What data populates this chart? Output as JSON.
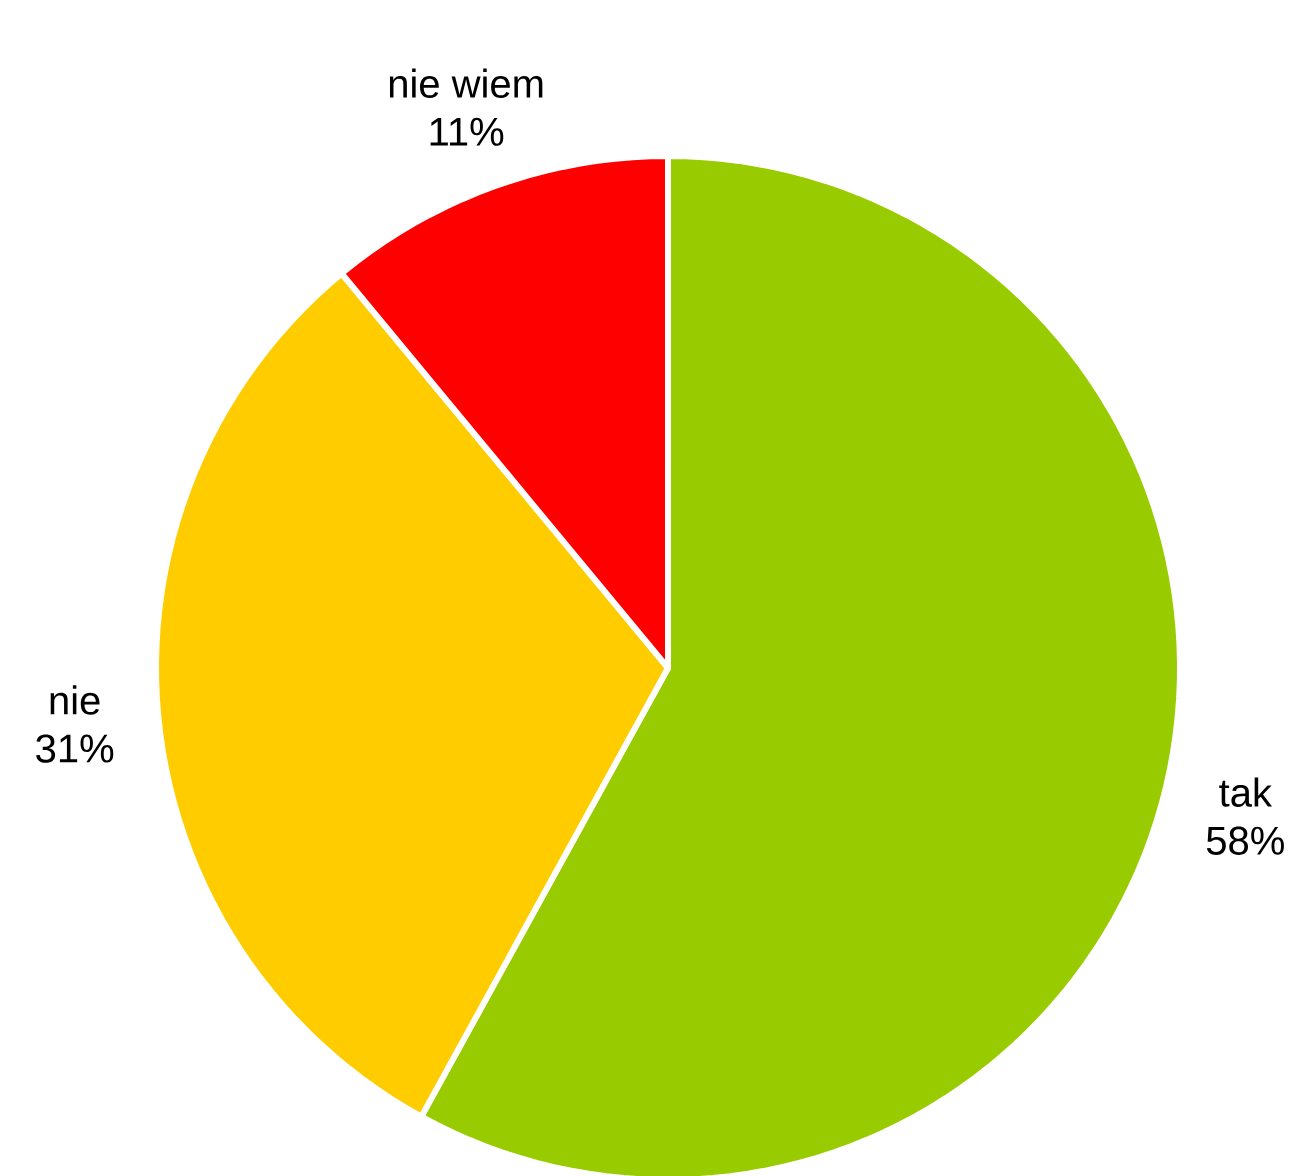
{
  "chart_data": {
    "type": "pie",
    "categories": [
      "tak",
      "nie",
      "nie wiem"
    ],
    "values": [
      58,
      31,
      11
    ],
    "colors": [
      "#99cc00",
      "#ffcc00",
      "#ff0000"
    ],
    "value_labels": [
      "58%",
      "31%",
      "11%"
    ]
  }
}
